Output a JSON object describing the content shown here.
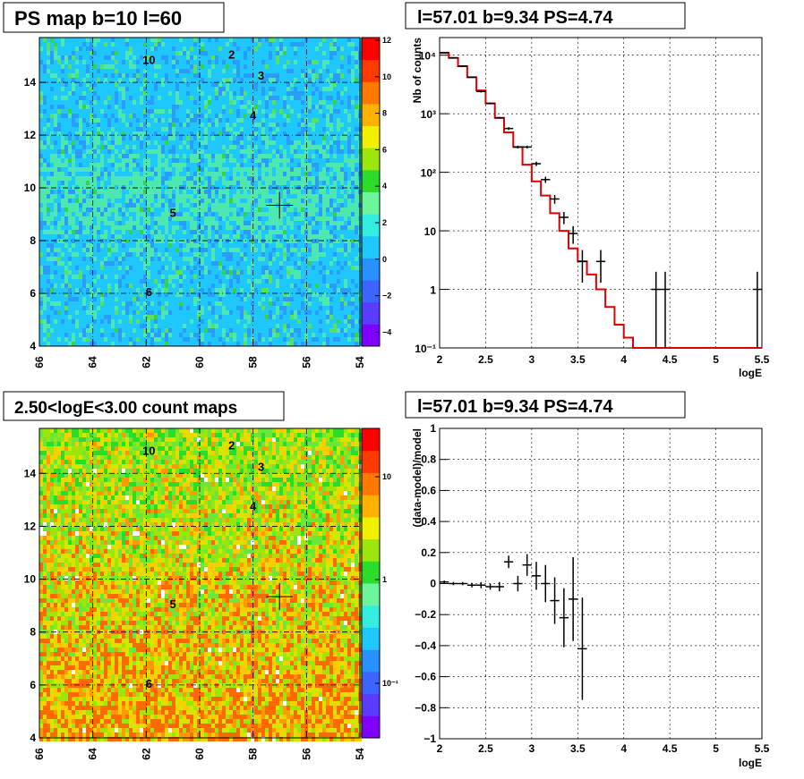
{
  "panels": {
    "tl_title": "PS map b=10 l=60",
    "tr_title": "l=57.01 b=9.34 PS=4.74",
    "bl_title": "2.50<logE<3.00 count maps",
    "br_title": "l=57.01 b=9.34 PS=4.74"
  },
  "maps": {
    "x_ticks": [
      "66",
      "64",
      "62",
      "60",
      "58",
      "56",
      "54"
    ],
    "y_ticks": [
      "4",
      "6",
      "8",
      "10",
      "12",
      "14"
    ],
    "cross": {
      "l": 57.01,
      "b": 9.34
    },
    "sources": [
      {
        "label": "10",
        "l": 61.9,
        "b": 14.7
      },
      {
        "label": "2",
        "l": 58.8,
        "b": 14.9
      },
      {
        "label": "3",
        "l": 57.7,
        "b": 14.1
      },
      {
        "label": "4",
        "l": 58.0,
        "b": 12.6
      },
      {
        "label": "5",
        "l": 61.0,
        "b": 8.9
      },
      {
        "label": "6",
        "l": 61.9,
        "b": 5.9
      }
    ],
    "colz_top": [
      "12",
      "10",
      "8",
      "6",
      "4",
      "2",
      "0",
      "−2",
      "−4"
    ],
    "colz_bottom": [
      "10",
      "1",
      "10⁻¹"
    ]
  },
  "chart_data": [
    {
      "type": "line",
      "title": "l=57.01 b=9.34 PS=4.74",
      "xlabel": "logE",
      "ylabel": "Nb of counts",
      "yscale": "log",
      "xlim": [
        2,
        5.5
      ],
      "ylim": [
        0.1,
        20000
      ],
      "x_ticks": [
        "2",
        "2.5",
        "3",
        "3.5",
        "4",
        "4.5",
        "5",
        "5.5"
      ],
      "y_ticks": [
        "10⁻¹",
        "1",
        "10",
        "10²",
        "10³",
        "10⁴"
      ],
      "grid": true,
      "series": [
        {
          "kind": "model-step",
          "color": "#e00000",
          "edges": [
            2.0,
            2.1,
            2.2,
            2.3,
            2.4,
            2.5,
            2.6,
            2.7,
            2.8,
            2.9,
            3.0,
            3.1,
            3.2,
            3.3,
            3.4,
            3.5,
            3.6,
            3.7,
            3.8,
            3.9,
            4.0,
            4.1,
            4.2,
            5.5
          ],
          "values": [
            11000,
            9000,
            6500,
            4200,
            2500,
            1500,
            850,
            480,
            270,
            135,
            70,
            40,
            20,
            10,
            5,
            3,
            1.8,
            1,
            0.5,
            0.25,
            0.15,
            0.1,
            0.1
          ]
        },
        {
          "kind": "data-points",
          "color": "#000000",
          "points": [
            {
              "x": 2.05,
              "y": 11000,
              "lo": 10800,
              "hi": 11200
            },
            {
              "x": 2.15,
              "y": 9000,
              "lo": 8800,
              "hi": 9200
            },
            {
              "x": 2.25,
              "y": 6500,
              "lo": 6300,
              "hi": 6700
            },
            {
              "x": 2.35,
              "y": 4200,
              "lo": 4100,
              "hi": 4300
            },
            {
              "x": 2.45,
              "y": 2400,
              "lo": 2300,
              "hi": 2500
            },
            {
              "x": 2.55,
              "y": 1500,
              "lo": 1450,
              "hi": 1550
            },
            {
              "x": 2.65,
              "y": 850,
              "lo": 820,
              "hi": 880
            },
            {
              "x": 2.75,
              "y": 560,
              "lo": 530,
              "hi": 590
            },
            {
              "x": 2.85,
              "y": 270,
              "lo": 255,
              "hi": 285
            },
            {
              "x": 2.95,
              "y": 270,
              "lo": 255,
              "hi": 285
            },
            {
              "x": 3.05,
              "y": 140,
              "lo": 128,
              "hi": 152
            },
            {
              "x": 3.15,
              "y": 75,
              "lo": 66,
              "hi": 84
            },
            {
              "x": 3.25,
              "y": 35,
              "lo": 29,
              "hi": 41
            },
            {
              "x": 3.35,
              "y": 17,
              "lo": 13,
              "hi": 21
            },
            {
              "x": 3.45,
              "y": 9,
              "lo": 6,
              "hi": 12
            },
            {
              "x": 3.55,
              "y": 3,
              "lo": 1.3,
              "hi": 4.7
            },
            {
              "x": 3.75,
              "y": 3,
              "lo": 1.3,
              "hi": 4.7
            },
            {
              "x": 4.35,
              "y": 1,
              "lo": 0.1,
              "hi": 2
            },
            {
              "x": 4.45,
              "y": 1,
              "lo": 0.1,
              "hi": 2
            },
            {
              "x": 5.45,
              "y": 1,
              "lo": 0.1,
              "hi": 2
            }
          ]
        }
      ]
    },
    {
      "type": "scatter",
      "title": "l=57.01 b=9.34 PS=4.74",
      "xlabel": "logE",
      "ylabel": "(data-model)/model",
      "xlim": [
        2,
        5.5
      ],
      "ylim": [
        -1,
        1
      ],
      "x_ticks": [
        "2",
        "2.5",
        "3",
        "3.5",
        "4",
        "4.5",
        "5",
        "5.5"
      ],
      "y_ticks": [
        "−1",
        "−0.8",
        "−0.6",
        "−0.4",
        "−0.2",
        "0",
        "0.2",
        "0.4",
        "0.6",
        "0.8",
        "1"
      ],
      "grid": true,
      "series": [
        {
          "kind": "residuals",
          "color": "#000000",
          "points": [
            {
              "x": 2.05,
              "y": 0.01,
              "err": 0.01
            },
            {
              "x": 2.15,
              "y": 0.0,
              "err": 0.01
            },
            {
              "x": 2.25,
              "y": 0.0,
              "err": 0.01
            },
            {
              "x": 2.35,
              "y": -0.01,
              "err": 0.015
            },
            {
              "x": 2.45,
              "y": -0.01,
              "err": 0.02
            },
            {
              "x": 2.55,
              "y": -0.02,
              "err": 0.02
            },
            {
              "x": 2.65,
              "y": -0.02,
              "err": 0.03
            },
            {
              "x": 2.75,
              "y": 0.14,
              "err": 0.04
            },
            {
              "x": 2.85,
              "y": 0.0,
              "err": 0.05
            },
            {
              "x": 2.95,
              "y": 0.12,
              "err": 0.07
            },
            {
              "x": 3.05,
              "y": 0.05,
              "err": 0.09
            },
            {
              "x": 3.15,
              "y": 0.0,
              "err": 0.12
            },
            {
              "x": 3.25,
              "y": -0.11,
              "err": 0.15
            },
            {
              "x": 3.35,
              "y": -0.22,
              "err": 0.19
            },
            {
              "x": 3.45,
              "y": -0.1,
              "err": 0.27
            },
            {
              "x": 3.55,
              "y": -0.42,
              "err": 0.33
            }
          ]
        }
      ]
    }
  ]
}
